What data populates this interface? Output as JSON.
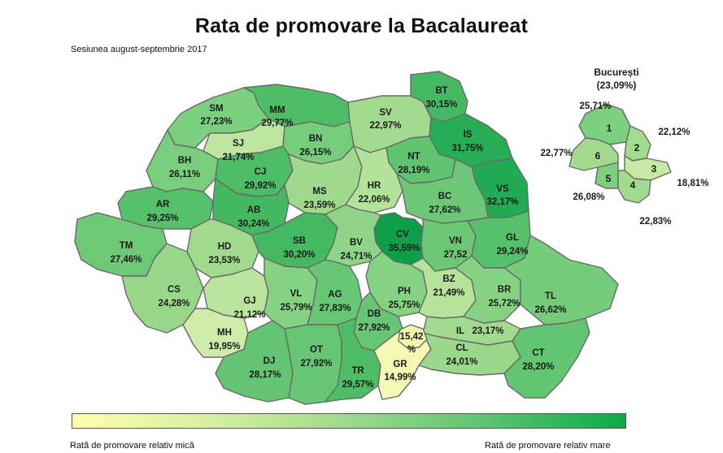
{
  "title": "Rata de promovare la Bacalaureat",
  "subtitle": "Sesiunea august-septembrie 2017",
  "legend": {
    "low_label": "Rată de promovare relativ mică",
    "high_label": "Rată de promovare relativ mare",
    "color_low": "#ffffaa",
    "color_high": "#10a84a"
  },
  "counties": [
    {
      "code": "SM",
      "value": "27,23%"
    },
    {
      "code": "MM",
      "value": "29,77%"
    },
    {
      "code": "SV",
      "value": "22,97%"
    },
    {
      "code": "BT",
      "value": "30,15%"
    },
    {
      "code": "SJ",
      "value": "21,74%"
    },
    {
      "code": "BN",
      "value": "26,15%"
    },
    {
      "code": "IS",
      "value": "31,75%"
    },
    {
      "code": "BH",
      "value": "26,11%"
    },
    {
      "code": "CJ",
      "value": "29,92%"
    },
    {
      "code": "NT",
      "value": "28,19%"
    },
    {
      "code": "MS",
      "value": "23,59%"
    },
    {
      "code": "HR",
      "value": "22,06%"
    },
    {
      "code": "VS",
      "value": "32,17%"
    },
    {
      "code": "AR",
      "value": "29,25%"
    },
    {
      "code": "AB",
      "value": "30,24%"
    },
    {
      "code": "BC",
      "value": "27,62%"
    },
    {
      "code": "CV",
      "value": "35,59%"
    },
    {
      "code": "TM",
      "value": "27,46%"
    },
    {
      "code": "HD",
      "value": "23,53%"
    },
    {
      "code": "SB",
      "value": "30,20%"
    },
    {
      "code": "BV",
      "value": "24,71%"
    },
    {
      "code": "VN",
      "value": "27,52"
    },
    {
      "code": "GL",
      "value": "29,24%"
    },
    {
      "code": "CS",
      "value": "24,28%"
    },
    {
      "code": "GJ",
      "value": "21,12%"
    },
    {
      "code": "VL",
      "value": "25,79%"
    },
    {
      "code": "AG",
      "value": "27,83%"
    },
    {
      "code": "PH",
      "value": "25,75%"
    },
    {
      "code": "BZ",
      "value": "21,49%"
    },
    {
      "code": "BR",
      "value": "25,72%"
    },
    {
      "code": "TL",
      "value": "26,62%"
    },
    {
      "code": "MH",
      "value": "19,95%"
    },
    {
      "code": "DB",
      "value": "27,92%"
    },
    {
      "code": "IL",
      "value": "23,17%"
    },
    {
      "code": "DJ",
      "value": "28,17%"
    },
    {
      "code": "OT",
      "value": "27,92%"
    },
    {
      "code": "TR",
      "value": "29,57%"
    },
    {
      "code": "GR",
      "value": "14,99%"
    },
    {
      "code": "CL",
      "value": "24,01%"
    },
    {
      "code": "CT",
      "value": "28,20%"
    }
  ],
  "ilfov_inset_value": "15,42",
  "ilfov_inset_unit": "%",
  "bucuresti": {
    "name": "București",
    "total": "(23,09%)",
    "sectors": [
      {
        "number": "1",
        "value": "25,71%"
      },
      {
        "number": "2",
        "value": "22,12%"
      },
      {
        "number": "3",
        "value": "18,81%"
      },
      {
        "number": "4",
        "value": "22,83%"
      },
      {
        "number": "5",
        "value": "26,08%"
      },
      {
        "number": "6",
        "value": "22,77%"
      }
    ]
  }
}
